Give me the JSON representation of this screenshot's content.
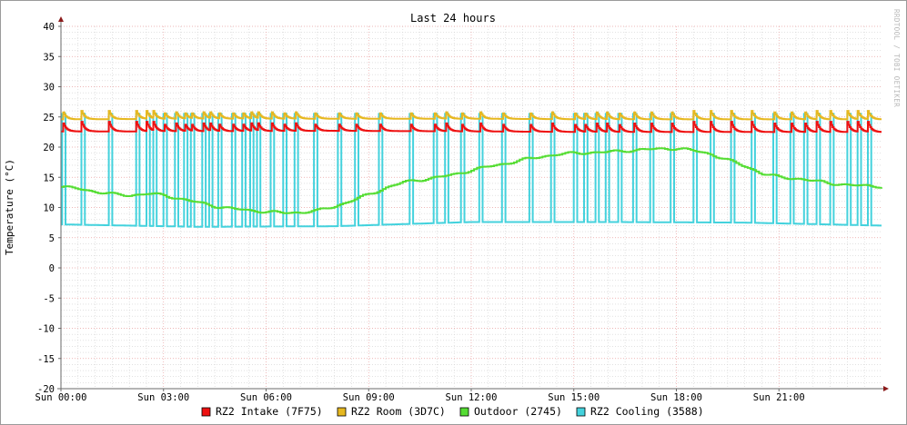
{
  "chart_data": {
    "type": "line",
    "title": "Last 24 hours",
    "ylabel": "Temperature (°C)",
    "xlabel": "",
    "watermark": "RRDTOOL / TOBI OETIKER",
    "ylim": [
      -20,
      40
    ],
    "yticks": [
      40,
      35,
      30,
      25,
      20,
      15,
      10,
      5,
      0,
      -5,
      -10,
      -15,
      -20
    ],
    "xlim_hours": [
      0,
      24
    ],
    "xticks": [
      {
        "hour": 0,
        "label": "Sun 00:00"
      },
      {
        "hour": 3,
        "label": "Sun 03:00"
      },
      {
        "hour": 6,
        "label": "Sun 06:00"
      },
      {
        "hour": 9,
        "label": "Sun 09:00"
      },
      {
        "hour": 12,
        "label": "Sun 12:00"
      },
      {
        "hour": 15,
        "label": "Sun 15:00"
      },
      {
        "hour": 18,
        "label": "Sun 18:00"
      },
      {
        "hour": 21,
        "label": "Sun 21:00"
      }
    ],
    "grid": true,
    "legend_position": "bottom",
    "colors": {
      "major_grid": "#e9a0a0",
      "minor_grid": "#d0d0d0",
      "axis": "#6a6a6a",
      "arrow": "#8b1a1a"
    },
    "series": [
      {
        "name": "RZ2 Intake (7F75)",
        "color": "#ee1111",
        "baseline": [
          [
            0,
            22.6
          ],
          [
            4,
            22.6
          ],
          [
            8,
            22.7
          ],
          [
            12,
            22.6
          ],
          [
            16,
            22.5
          ],
          [
            20,
            22.5
          ],
          [
            24,
            22.5
          ]
        ],
        "spike_to": 24.2,
        "spike_hours": [
          0.05,
          0.6,
          1.4,
          2.2,
          2.5,
          2.7,
          3.0,
          3.35,
          3.6,
          3.8,
          4.15,
          4.35,
          4.6,
          5.0,
          5.3,
          5.55,
          5.75,
          6.15,
          6.5,
          6.85,
          7.4,
          8.1,
          8.6,
          9.3,
          10.2,
          10.9,
          11.25,
          11.7,
          12.25,
          12.9,
          13.7,
          14.35,
          15.0,
          15.3,
          15.65,
          15.95,
          16.3,
          16.75,
          17.25,
          17.85,
          18.5,
          19.0,
          19.6,
          20.2,
          20.85,
          21.35,
          21.75,
          22.1,
          22.5,
          23.0,
          23.3,
          23.6
        ]
      },
      {
        "name": "RZ2 Room (3D7C)",
        "color": "#e6b820",
        "baseline": [
          [
            0,
            24.6
          ],
          [
            4,
            24.7
          ],
          [
            8,
            24.7
          ],
          [
            12,
            24.7
          ],
          [
            16,
            24.6
          ],
          [
            20,
            24.6
          ],
          [
            24,
            24.6
          ]
        ],
        "spike_to": 26.0,
        "spike_hours": [
          0.05,
          0.6,
          1.4,
          2.2,
          2.5,
          2.7,
          3.0,
          3.35,
          3.6,
          3.8,
          4.15,
          4.35,
          4.6,
          5.0,
          5.3,
          5.55,
          5.75,
          6.15,
          6.5,
          6.85,
          7.4,
          8.1,
          8.6,
          9.3,
          10.2,
          10.9,
          11.25,
          11.7,
          12.25,
          12.9,
          13.7,
          14.35,
          15.0,
          15.3,
          15.65,
          15.95,
          16.3,
          16.75,
          17.25,
          17.85,
          18.5,
          19.0,
          19.6,
          20.2,
          20.85,
          21.35,
          21.75,
          22.1,
          22.5,
          23.0,
          23.3,
          23.6
        ]
      },
      {
        "name": "Outdoor (2745)",
        "color": "#55dd33",
        "points": [
          [
            0,
            13.4
          ],
          [
            0.5,
            13.1
          ],
          [
            1,
            12.6
          ],
          [
            1.5,
            12.2
          ],
          [
            2,
            12.0
          ],
          [
            2.5,
            12.3
          ],
          [
            3,
            12.0
          ],
          [
            3.5,
            11.4
          ],
          [
            4,
            10.8
          ],
          [
            4.5,
            10.2
          ],
          [
            5,
            9.8
          ],
          [
            5.5,
            9.5
          ],
          [
            6,
            9.3
          ],
          [
            6.5,
            9.1
          ],
          [
            7,
            9.2
          ],
          [
            7.5,
            9.5
          ],
          [
            8,
            10.2
          ],
          [
            8.5,
            11.2
          ],
          [
            9,
            12.2
          ],
          [
            9.5,
            13.3
          ],
          [
            10,
            14.2
          ],
          [
            10.5,
            14.6
          ],
          [
            11,
            15.0
          ],
          [
            11.5,
            15.5
          ],
          [
            12,
            16.2
          ],
          [
            12.5,
            16.8
          ],
          [
            13,
            17.3
          ],
          [
            13.5,
            17.9
          ],
          [
            14,
            18.4
          ],
          [
            14.5,
            18.8
          ],
          [
            15,
            19.0
          ],
          [
            15.5,
            19.1
          ],
          [
            16,
            19.2
          ],
          [
            16.5,
            19.4
          ],
          [
            17,
            19.6
          ],
          [
            17.5,
            19.7
          ],
          [
            18,
            19.8
          ],
          [
            18.5,
            19.4
          ],
          [
            19,
            18.8
          ],
          [
            19.5,
            17.8
          ],
          [
            20,
            16.8
          ],
          [
            20.5,
            15.6
          ],
          [
            21,
            15.0
          ],
          [
            21.5,
            14.8
          ],
          [
            22,
            14.4
          ],
          [
            22.5,
            14.0
          ],
          [
            23,
            13.7
          ],
          [
            23.5,
            13.6
          ],
          [
            24,
            13.5
          ]
        ]
      },
      {
        "name": "RZ2 Cooling (3588)",
        "color": "#44d2dd",
        "baseline": [
          [
            0,
            7.2
          ],
          [
            4,
            6.8
          ],
          [
            8,
            6.9
          ],
          [
            12,
            7.6
          ],
          [
            16,
            7.6
          ],
          [
            20,
            7.5
          ],
          [
            24,
            7.0
          ]
        ],
        "spike_to": 25.5,
        "spike_hours": [
          0.05,
          0.6,
          1.4,
          2.2,
          2.5,
          2.7,
          3.0,
          3.35,
          3.6,
          3.8,
          4.15,
          4.35,
          4.6,
          5.0,
          5.3,
          5.55,
          5.75,
          6.15,
          6.5,
          6.85,
          7.4,
          8.1,
          8.6,
          9.3,
          10.2,
          10.9,
          11.25,
          11.7,
          12.25,
          12.9,
          13.7,
          14.35,
          15.0,
          15.3,
          15.65,
          15.95,
          16.3,
          16.75,
          17.25,
          17.85,
          18.5,
          19.0,
          19.6,
          20.2,
          20.85,
          21.35,
          21.75,
          22.1,
          22.5,
          23.0,
          23.3,
          23.6
        ]
      }
    ]
  }
}
